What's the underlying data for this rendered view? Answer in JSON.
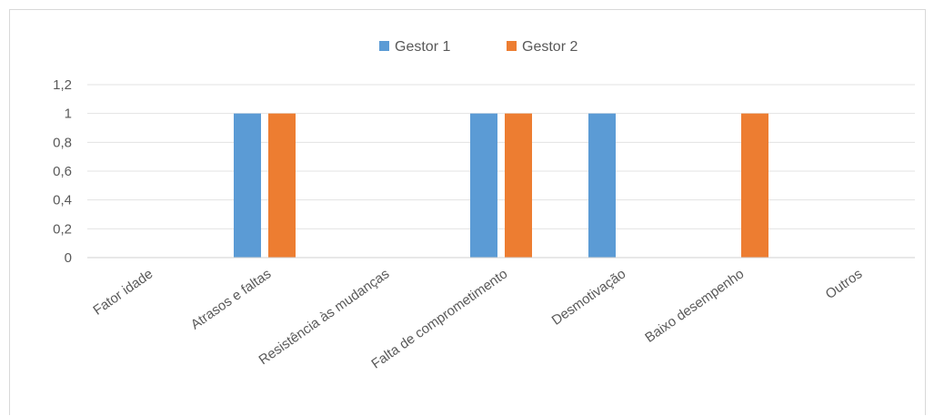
{
  "chart_data": {
    "type": "bar",
    "title": "",
    "xlabel": "",
    "ylabel": "",
    "categories": [
      "Fator idade",
      "Atrasos e faltas",
      "Resistência às mudanças",
      "Falta de comprometimento",
      "Desmotivação",
      "Baixo desempenho",
      "Outros"
    ],
    "series": [
      {
        "name": "Gestor 1",
        "color": "#5b9bd5",
        "values": [
          0,
          1,
          0,
          1,
          1,
          0,
          0
        ]
      },
      {
        "name": "Gestor 2",
        "color": "#ed7d31",
        "values": [
          0,
          1,
          0,
          1,
          0,
          1,
          0
        ]
      }
    ],
    "ylim": [
      0,
      1.2
    ],
    "yticks": [
      0,
      0.2,
      0.4,
      0.6,
      0.8,
      1,
      1.2
    ],
    "ytick_labels": [
      "0",
      "0,2",
      "0,4",
      "0,6",
      "0,8",
      "1",
      "1,2"
    ],
    "grid": true,
    "legend_position": "top"
  }
}
